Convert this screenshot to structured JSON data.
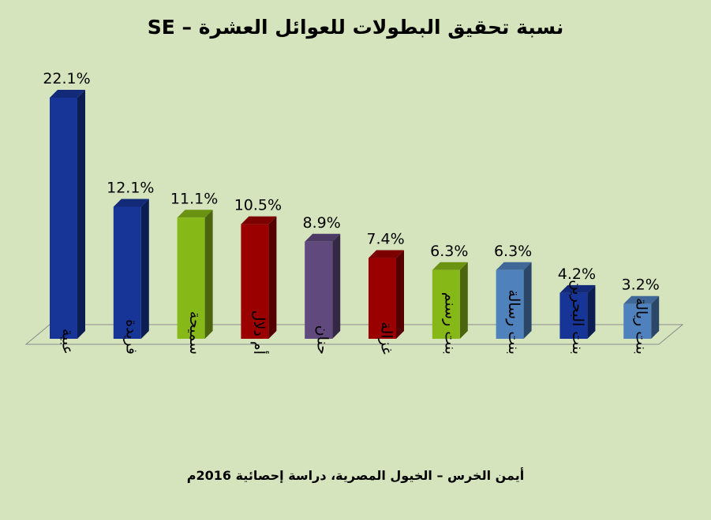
{
  "chart_data": {
    "type": "bar",
    "title": "نسبة تحقيق البطولات للعوائل العشرة – SE",
    "source": "أيمن الخرس – الخيول المصرية، دراسة إحصائية 2016م",
    "categories": [
      "عبية",
      "فريدة",
      "سميحة",
      "أم دلال",
      "حنان",
      "غزالة",
      "بنت رسنم",
      "بنت رسالة",
      "بنت البحرين",
      "بنت ريالة"
    ],
    "values": [
      22.1,
      12.1,
      11.1,
      10.5,
      8.9,
      7.4,
      6.3,
      6.3,
      4.2,
      3.2
    ],
    "value_labels": [
      "22.1%",
      "12.1%",
      "11.1%",
      "10.5%",
      "8.9%",
      "7.4%",
      "6.3%",
      "6.3%",
      "4.2%",
      "3.2%"
    ],
    "bar_colors": [
      "#163596",
      "#163596",
      "#86b817",
      "#9b0000",
      "#5f497d",
      "#9b0000",
      "#86b817",
      "#4f81bd",
      "#163596",
      "#4f81bd"
    ],
    "ylim": [
      0,
      22.1
    ],
    "grid": false,
    "legend": "none",
    "background": "#d6e4bd"
  }
}
